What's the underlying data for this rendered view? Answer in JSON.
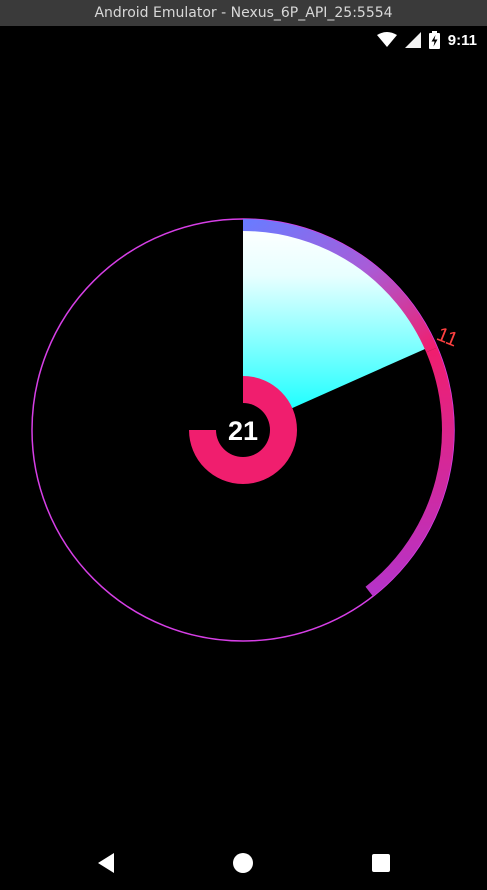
{
  "window": {
    "title": "Android Emulator - Nexus_6P_API_25:5554"
  },
  "status_bar": {
    "time": "9:11",
    "icons": [
      "wifi-icon",
      "signal-icon",
      "battery-charging-icon"
    ]
  },
  "widget": {
    "center_value": "21",
    "marker_label": "11",
    "colors": {
      "outer_circle": "#d63fe6",
      "accent_pink": "#f01e6e",
      "arc_blue": "#6a7bff",
      "arc_purple": "#b633c8",
      "wedge_top": "#ffffff",
      "wedge_bottom": "#00ffff",
      "marker_label": "#ff4040"
    }
  },
  "nav_bar": {
    "buttons": [
      "back-icon",
      "home-icon",
      "recents-icon"
    ]
  }
}
